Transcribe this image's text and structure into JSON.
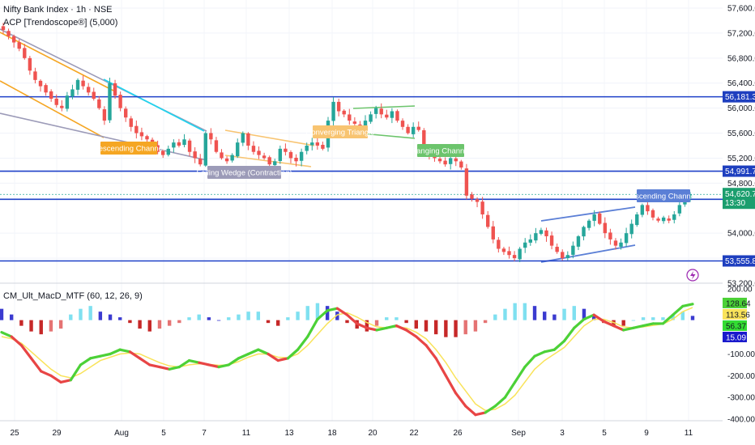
{
  "header": {
    "title": "Nifty Bank Index · 1h · NSE",
    "indicator": "ACP [Trendoscope®] (5,000)"
  },
  "chart_data": [
    {
      "type": "candlestick",
      "title": "Nifty Bank Index · 1h · NSE",
      "ylim": [
        53200,
        57600
      ],
      "y_ticks": [
        "57,600.00",
        "57,200.00",
        "56,800.00",
        "56,400.00",
        "56,000.00",
        "55,600.00",
        "55,200.00",
        "54,800.00",
        "54,000.00",
        "53,600.00",
        "53,200.00"
      ],
      "x_ticks": [
        "25",
        "29",
        "Aug",
        "5",
        "7",
        "11",
        "13",
        "18",
        "20",
        "22",
        "26",
        "Sep",
        "3",
        "5",
        "9",
        "11"
      ],
      "horizontal_levels": [
        {
          "label": "56,181.30",
          "value": 56181.3
        },
        {
          "label": "54,991.75",
          "value": 54991.75
        },
        {
          "label": "54,541.25",
          "value": 54541.25
        },
        {
          "label": "53,555.85",
          "value": 53555.85
        }
      ],
      "last_price": {
        "label": "54,620.70",
        "countdown": "13:30",
        "value": 54620.7
      },
      "patterns": [
        {
          "label": "Descending Channel",
          "color": "#f5a623"
        },
        {
          "label": "Falling Wedge (Contracting)",
          "color": "#9c9bb8"
        },
        {
          "label": "Converging Triangle",
          "color": "#f8c471"
        },
        {
          "label": "Ranging Channel",
          "color": "#6cc46c"
        },
        {
          "label": "Ascending Channel",
          "color": "#5b7fd6"
        }
      ],
      "close_path": [
        57250,
        57150,
        57050,
        56950,
        56800,
        56600,
        56450,
        56350,
        56250,
        56150,
        56050,
        56000,
        56200,
        56300,
        56450,
        56350,
        56250,
        56150,
        56000,
        55800,
        56400,
        56200,
        56000,
        55850,
        55700,
        55600,
        55550,
        55500,
        55400,
        55300,
        55250,
        55350,
        55450,
        55400,
        55500,
        55300,
        55200,
        55100,
        55600,
        55500,
        55300,
        55200,
        55150,
        55250,
        55450,
        55600,
        55400,
        55300,
        55250,
        55200,
        55100,
        55150,
        55350,
        55300,
        55200,
        55150,
        55300,
        55400,
        55450,
        55400,
        55350,
        55800,
        56100,
        55950,
        55900,
        55800,
        55750,
        55700,
        55800,
        55900,
        56000,
        55900,
        55850,
        55950,
        55800,
        55700,
        55600,
        55700,
        55650,
        55300,
        55250,
        55200,
        55150,
        55100,
        55200,
        55150,
        55050,
        54600,
        54550,
        54500,
        54300,
        54100,
        53900,
        53750,
        53700,
        53650,
        53600,
        53750,
        53850,
        53900,
        54000,
        54050,
        53950,
        53800,
        53700,
        53600,
        53650,
        53800,
        53950,
        54100,
        54200,
        54300,
        54150,
        54000,
        53900,
        53800,
        53850,
        54000,
        54150,
        54300,
        54450,
        54350,
        54250,
        54200,
        54250,
        54200,
        54300,
        54450,
        54550,
        54620
      ]
    },
    {
      "type": "line",
      "title": "CM_Ult_MacD_MTF (60, 12, 26, 9)",
      "ylim": [
        -400,
        200
      ],
      "y_ticks": [
        "200.00",
        "-100.00",
        "-200.00",
        "-300.00",
        "-400.00"
      ],
      "readouts": [
        {
          "label": "128.64",
          "color": "#4cd137"
        },
        {
          "label": "113.56",
          "color": "#f9e35a"
        },
        {
          "label": "56.37",
          "color": "#33dd33"
        },
        {
          "label": "15.09",
          "color": "#1a1acc"
        }
      ],
      "series": [
        {
          "name": "",
          "values": [
            0,
            -20,
            -60,
            -120,
            -180,
            -200,
            -230,
            -220,
            -150,
            -120,
            -110,
            -100,
            -80,
            -90,
            -120,
            -150,
            -160,
            -170,
            -160,
            -130,
            -140,
            -150,
            -160,
            -150,
            -120,
            -100,
            -80,
            -100,
            -130,
            -120,
            -80,
            -20,
            60,
            100,
            110,
            80,
            40,
            20,
            10,
            20,
            30,
            10,
            -20,
            -60,
            -120,
            -200,
            -280,
            -340,
            -380,
            -370,
            -340,
            -300,
            -230,
            -160,
            -110,
            -90,
            -80,
            -40,
            20,
            60,
            80,
            50,
            30,
            10,
            20,
            30,
            40,
            40,
            80,
            120,
            130
          ]
        },
        {
          "name": "",
          "values": [
            -20,
            -30,
            -50,
            -90,
            -130,
            -170,
            -200,
            -210,
            -190,
            -160,
            -130,
            -115,
            -100,
            -95,
            -100,
            -120,
            -140,
            -155,
            -160,
            -150,
            -145,
            -148,
            -152,
            -150,
            -135,
            -115,
            -100,
            -100,
            -115,
            -118,
            -100,
            -60,
            -10,
            40,
            80,
            90,
            70,
            45,
            25,
            20,
            25,
            20,
            0,
            -30,
            -80,
            -140,
            -210,
            -270,
            -330,
            -360,
            -355,
            -330,
            -290,
            -230,
            -170,
            -130,
            -100,
            -70,
            -20,
            30,
            60,
            60,
            45,
            25,
            20,
            25,
            32,
            38,
            60,
            95,
            114
          ]
        },
        {
          "name": "",
          "values": [
            40,
            20,
            -20,
            -40,
            -50,
            -40,
            -30,
            20,
            40,
            50,
            30,
            20,
            10,
            -10,
            -30,
            -40,
            -30,
            -20,
            -10,
            10,
            20,
            10,
            0,
            10,
            20,
            30,
            30,
            -10,
            -20,
            10,
            30,
            50,
            60,
            50,
            30,
            -10,
            -30,
            -40,
            -20,
            10,
            10,
            -10,
            -30,
            -40,
            -50,
            -60,
            -60,
            -50,
            -40,
            -10,
            20,
            40,
            60,
            60,
            50,
            30,
            20,
            40,
            50,
            40,
            20,
            -10,
            -20,
            -20,
            0,
            10,
            10,
            10,
            20,
            30,
            15
          ]
        }
      ]
    }
  ]
}
